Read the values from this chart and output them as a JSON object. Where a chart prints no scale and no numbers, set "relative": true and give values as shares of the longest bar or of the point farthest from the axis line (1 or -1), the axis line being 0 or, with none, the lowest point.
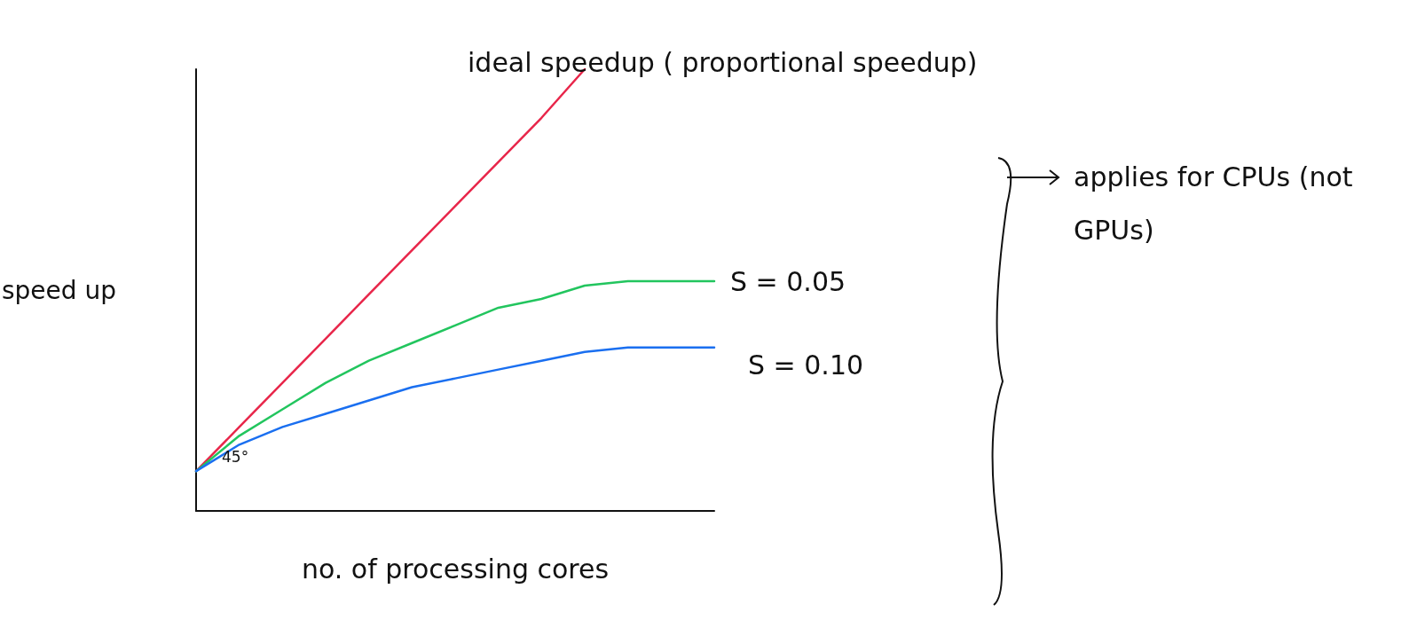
{
  "chart_data": {
    "type": "line",
    "relative": true,
    "xlabel": "no. of processing cores",
    "ylabel": "speed up",
    "categories": [
      null,
      null,
      null,
      null,
      null,
      null,
      null,
      null,
      null,
      null,
      null,
      null,
      null
    ],
    "series": [
      {
        "name": "ideal speedup ( proportional speedup)",
        "color": "#e8264a",
        "values": [
          0.09,
          0.19,
          0.29,
          0.39,
          0.49,
          0.59,
          0.69,
          0.79,
          0.89,
          1.0,
          null,
          null,
          null
        ]
      },
      {
        "name": "S = 0.05",
        "color": "#22c55e",
        "values": [
          0.09,
          0.17,
          0.23,
          0.29,
          0.34,
          0.38,
          0.42,
          0.46,
          0.48,
          0.51,
          0.52,
          0.52,
          0.52
        ]
      },
      {
        "name": "S = 0.10",
        "color": "#1a6ff0",
        "values": [
          0.09,
          0.15,
          0.19,
          0.22,
          0.25,
          0.28,
          0.3,
          0.32,
          0.34,
          0.36,
          0.37,
          0.37,
          0.37
        ]
      }
    ],
    "annotations": [
      "45°",
      "applies for CPUs (not GPUs)"
    ],
    "marker": "none",
    "line_style": "solid",
    "grid": false,
    "legend": false
  }
}
